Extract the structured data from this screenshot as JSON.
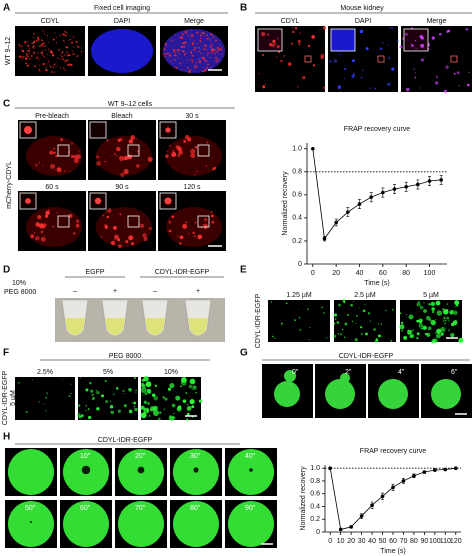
{
  "panel_labels": [
    "A",
    "B",
    "C",
    "D",
    "E",
    "F",
    "G",
    "H"
  ],
  "panel_a": {
    "title": "Fixed cell imaging",
    "columns": [
      "CDYL",
      "DAPI",
      "Merge"
    ],
    "row_label": "WT 9–12"
  },
  "panel_b": {
    "title": "Mouse kidney",
    "columns": [
      "CDYL",
      "DAPI",
      "Merge"
    ]
  },
  "panel_c": {
    "title": "WT 9–12 cells",
    "timepoints": [
      "Pre-bleach",
      "Bleach",
      "30 s",
      "60 s",
      "90 s",
      "120 s"
    ],
    "row_label": "mCherry-CDYL"
  },
  "panel_d": {
    "condition_label": [
      "10%",
      "PEG 8000"
    ],
    "groups": [
      "EGFP",
      "CDYL-IDR-EGFP"
    ],
    "marks": [
      "–",
      "+",
      "–",
      "+"
    ]
  },
  "panel_e": {
    "concentrations": [
      "1.25 µM",
      "2.5 µM",
      "5 µM"
    ],
    "row_label": "CDYL-IDR-EGFP"
  },
  "panel_f": {
    "title": "PEG 8000",
    "percentages": [
      "2.5%",
      "5%",
      "10%"
    ],
    "row_label": [
      "CDYL-IDR-EGFP",
      "5 µM"
    ]
  },
  "panel_g": {
    "title": "CDYL-IDR-EGFP",
    "timepoints": [
      "0\"",
      "2\"",
      "4\"",
      "6\""
    ]
  },
  "panel_h": {
    "title": "CDYL-IDR-EGFP",
    "timepoints": [
      "10\"",
      "20\"",
      "30\"",
      "40\"",
      "50\"",
      "60\"",
      "70\"",
      "80\"",
      "90\""
    ]
  },
  "chart_data": [
    {
      "type": "line",
      "title": "FRAP recovery curve",
      "x_label": "Time (s)",
      "y_label": "Normalized recovery",
      "x": [
        0,
        10,
        20,
        30,
        40,
        50,
        60,
        70,
        80,
        90,
        100,
        110
      ],
      "values": [
        1.0,
        0.22,
        0.36,
        0.45,
        0.52,
        0.58,
        0.62,
        0.65,
        0.67,
        0.69,
        0.72,
        0.73
      ],
      "errors": [
        0,
        0.02,
        0.03,
        0.04,
        0.04,
        0.04,
        0.04,
        0.04,
        0.04,
        0.04,
        0.04,
        0.04
      ],
      "color": "#000000",
      "reference_line": 0.8,
      "xlim": [
        -5,
        115
      ],
      "xticks": [
        0,
        20,
        40,
        60,
        80,
        100
      ],
      "ylim": [
        0,
        1.05
      ],
      "yticks": [
        0,
        0.2,
        0.4,
        0.6,
        0.8,
        {
          "value": 1,
          "label": "1.0"
        }
      ]
    },
    {
      "type": "line",
      "title": "FRAP recovery curve",
      "x_label": "Time (s)",
      "y_label": "Normalized recovery",
      "x": [
        0,
        10,
        20,
        30,
        40,
        50,
        60,
        70,
        80,
        90,
        100,
        110,
        120
      ],
      "values": [
        1.0,
        0.04,
        0.08,
        0.25,
        0.42,
        0.56,
        0.7,
        0.8,
        0.88,
        0.94,
        0.97,
        0.98,
        1.0
      ],
      "errors": [
        0,
        0.01,
        0.02,
        0.04,
        0.05,
        0.05,
        0.05,
        0.04,
        0.03,
        0.02,
        0.02,
        0.01,
        0.01
      ],
      "color": "#000000",
      "reference_line": 1,
      "xlim": [
        -5,
        125
      ],
      "xticks": [
        0,
        10,
        20,
        30,
        40,
        50,
        60,
        70,
        80,
        90,
        100,
        110,
        120
      ],
      "ylim": [
        0,
        1.05
      ],
      "yticks": [
        0,
        0.2,
        0.4,
        0.6,
        0.8,
        {
          "value": 1,
          "label": "1.0"
        }
      ]
    }
  ]
}
